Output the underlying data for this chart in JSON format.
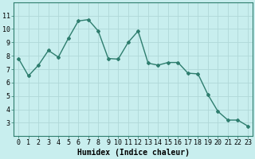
{
  "x": [
    0,
    1,
    2,
    3,
    4,
    5,
    6,
    7,
    8,
    9,
    10,
    11,
    12,
    13,
    14,
    15,
    16,
    17,
    18,
    19,
    20,
    21,
    22,
    23
  ],
  "y": [
    7.8,
    6.5,
    7.3,
    8.4,
    7.9,
    9.3,
    10.6,
    10.7,
    9.85,
    7.8,
    7.75,
    9.0,
    9.85,
    7.45,
    7.3,
    7.5,
    7.5,
    6.7,
    6.65,
    5.1,
    3.85,
    3.2,
    3.2,
    2.75
  ],
  "line_color": "#2e7d6e",
  "marker": "D",
  "marker_size": 2.0,
  "line_width": 1.0,
  "bg_color": "#c8eeee",
  "grid_color": "#b0d8d8",
  "xlabel": "Humidex (Indice chaleur)",
  "xlabel_fontsize": 7,
  "tick_fontsize": 6.0,
  "ylim": [
    2,
    12
  ],
  "xlim": [
    -0.5,
    23.5
  ],
  "yticks": [
    3,
    4,
    5,
    6,
    7,
    8,
    9,
    10,
    11
  ],
  "xticks": [
    0,
    1,
    2,
    3,
    4,
    5,
    6,
    7,
    8,
    9,
    10,
    11,
    12,
    13,
    14,
    15,
    16,
    17,
    18,
    19,
    20,
    21,
    22,
    23
  ]
}
